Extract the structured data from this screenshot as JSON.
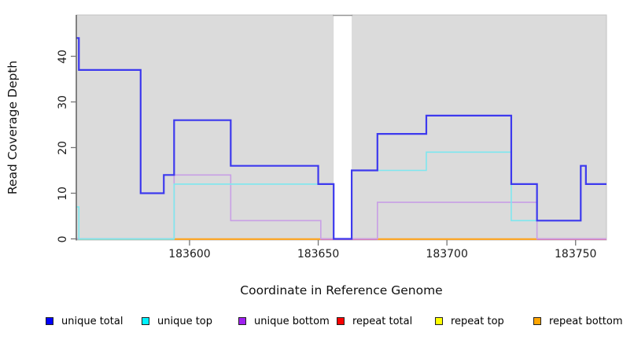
{
  "chart_data": {
    "type": "line",
    "subtype": "step-coverage-plot",
    "title": "",
    "xlabel": "Coordinate in Reference Genome",
    "ylabel": "Read Coverage Depth",
    "xlim": [
      183556,
      183762
    ],
    "ylim": [
      0,
      48
    ],
    "x_ticks": [
      "183600",
      "183650",
      "183700",
      "183750"
    ],
    "x_tick_values": [
      183600,
      183650,
      183700,
      183750
    ],
    "y_ticks": [
      "0",
      "10",
      "20",
      "30",
      "40"
    ],
    "y_tick_values": [
      0,
      10,
      20,
      30,
      40
    ],
    "grid": false,
    "plot_background": "#DBDBDB",
    "plot_border": "#C3C3C3",
    "axis_color": "#4a4a4a",
    "tick_color": "#757575",
    "gap_region": {
      "x_start": 183656,
      "x_end": 183663,
      "fill": "#FFFFFF",
      "note": "white no-data band"
    },
    "series": [
      {
        "name": "unique total",
        "color": "#3D39EE",
        "line_width": 2.2,
        "steps": [
          [
            183556,
            44
          ],
          [
            183557,
            37
          ],
          [
            183581,
            10
          ],
          [
            183590,
            14
          ],
          [
            183594,
            26
          ],
          [
            183616,
            16
          ],
          [
            183650,
            12
          ],
          [
            183656,
            0
          ],
          [
            183663,
            15
          ],
          [
            183673,
            23
          ],
          [
            183692,
            27
          ],
          [
            183725,
            12
          ],
          [
            183735,
            4
          ],
          [
            183752,
            16
          ],
          [
            183754,
            12
          ]
        ]
      },
      {
        "name": "unique top",
        "color": "#7EE7EF",
        "line_width": 1.6,
        "steps": [
          [
            183556,
            7
          ],
          [
            183557,
            0
          ],
          [
            183594,
            12
          ],
          [
            183656,
            0
          ],
          [
            183663,
            15
          ],
          [
            183692,
            19
          ],
          [
            183725,
            4
          ],
          [
            183752,
            16
          ],
          [
            183754,
            12
          ]
        ]
      },
      {
        "name": "unique bottom",
        "color": "#C89FE5",
        "line_width": 1.6,
        "steps": [
          [
            183556,
            0
          ],
          [
            183594,
            14
          ],
          [
            183616,
            4
          ],
          [
            183651,
            0
          ],
          [
            183673,
            8
          ],
          [
            183735,
            0
          ]
        ]
      },
      {
        "name": "repeat total",
        "color": "#FA0000",
        "line_width": 2,
        "steps": [
          [
            183556,
            0
          ]
        ]
      },
      {
        "name": "repeat top",
        "color": "#FFFF00",
        "line_width": 2,
        "steps": [
          [
            183556,
            0
          ]
        ]
      },
      {
        "name": "repeat bottom",
        "color": "#FFA41E",
        "line_width": 2,
        "steps": [
          [
            183556,
            0
          ]
        ]
      }
    ],
    "baseline_render_segments": [
      {
        "x_start": 183556,
        "x_end": 183594,
        "color": "#8FD8A0"
      },
      {
        "x_start": 183594,
        "x_end": 183651,
        "color": "#FFA41E"
      },
      {
        "x_start": 183651,
        "x_end": 183673,
        "color": "#E2609A"
      },
      {
        "x_start": 183673,
        "x_end": 183735,
        "color": "#FFA41E"
      },
      {
        "x_start": 183735,
        "x_end": 183762,
        "color": "#E2609A"
      }
    ],
    "legend": {
      "position": "bottom",
      "items": [
        {
          "label": "unique total",
          "swatch_color": "#0000FE"
        },
        {
          "label": "unique top",
          "swatch_color": "#00F2FF"
        },
        {
          "label": "unique bottom",
          "swatch_color": "#A020F0"
        },
        {
          "label": "repeat total",
          "swatch_color": "#FA0000"
        },
        {
          "label": "repeat top",
          "swatch_color": "#FFFF00"
        },
        {
          "label": "repeat bottom",
          "swatch_color": "#FFA500"
        }
      ]
    }
  }
}
